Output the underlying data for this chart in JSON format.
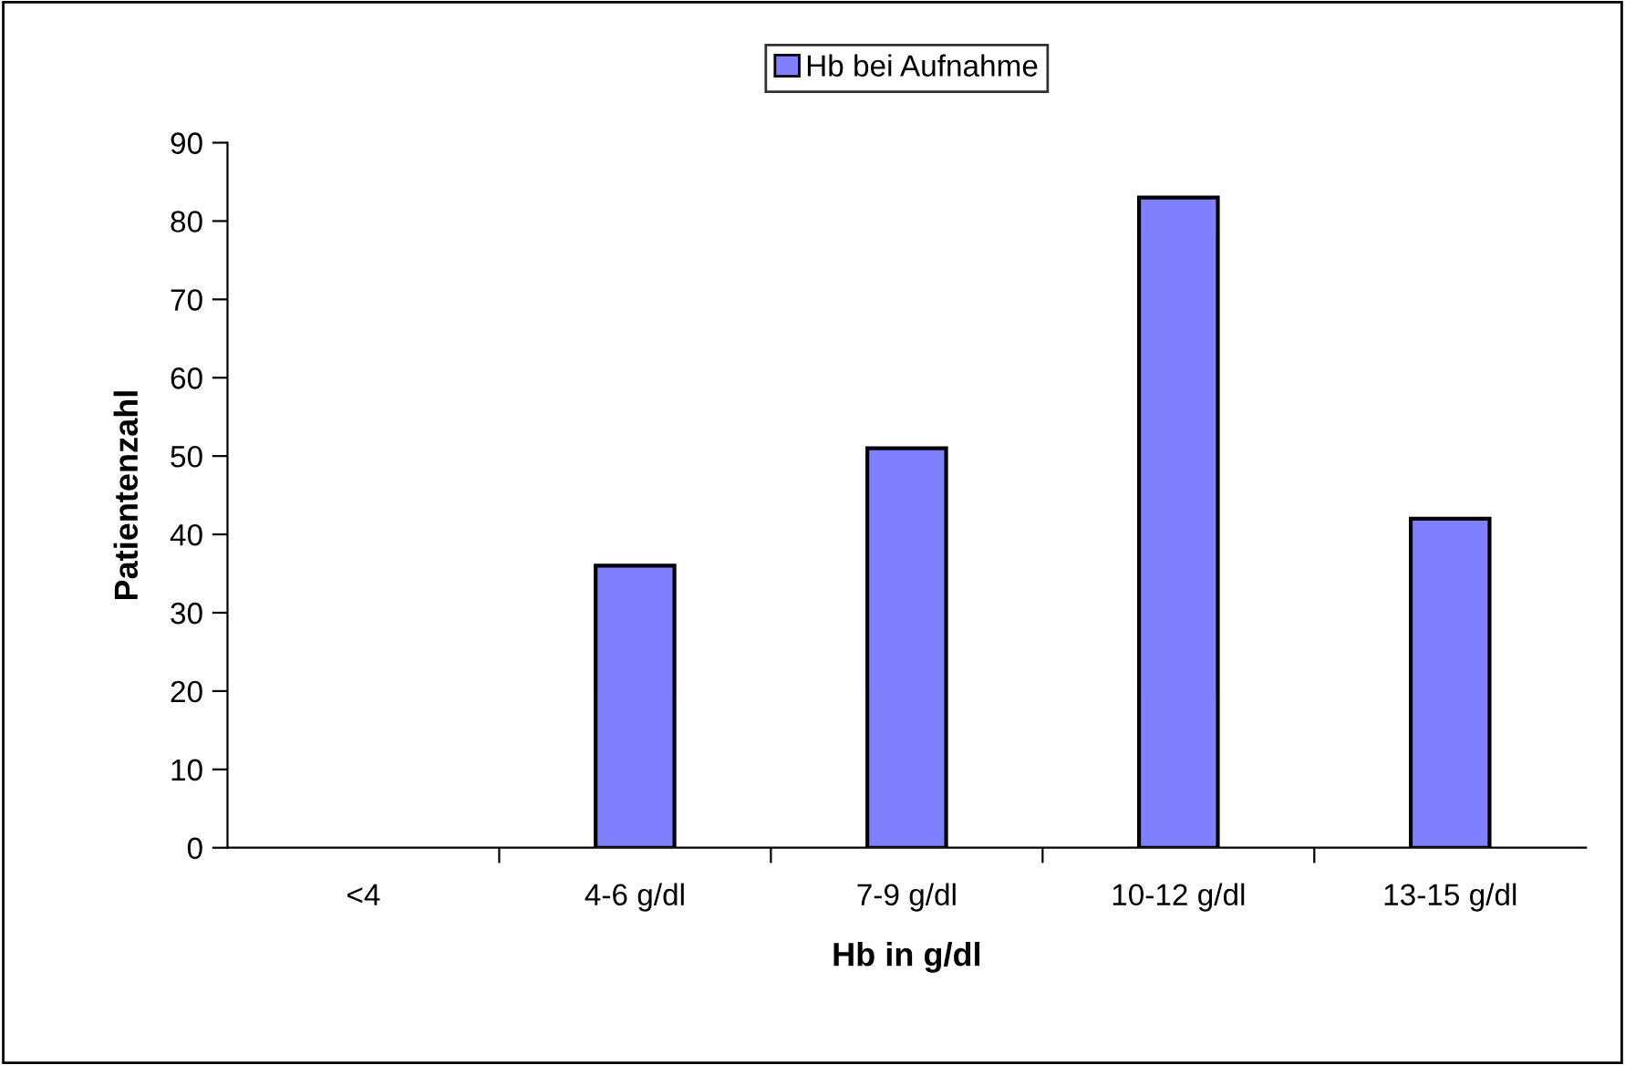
{
  "chart_data": {
    "type": "bar",
    "xlabel": "Hb in g/dl",
    "ylabel": "Patientenzahl",
    "categories": [
      "<4",
      "4-6 g/dl",
      "7-9 g/dl",
      "10-12 g/dl",
      "13-15 g/dl"
    ],
    "series": [
      {
        "name": "Hb bei Aufnahme",
        "color": "#8080ff",
        "values": [
          0,
          36,
          51,
          83,
          42
        ]
      }
    ],
    "ylim": [
      0,
      90
    ],
    "yticks": [
      0,
      10,
      20,
      30,
      40,
      50,
      60,
      70,
      80,
      90
    ],
    "grid": false,
    "legend": "top"
  }
}
